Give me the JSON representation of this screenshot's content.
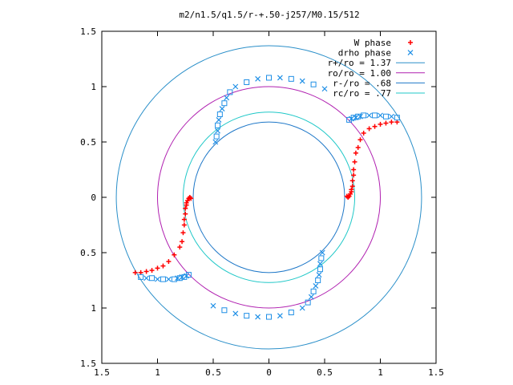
{
  "chart_data": {
    "type": "scatter",
    "title": "m2/n1.5/q1.5/r-+.50-j257/M0.15/512",
    "xlim": [
      -1.5,
      1.5
    ],
    "ylim": [
      -1.5,
      1.5
    ],
    "xticks": [
      -1.5,
      -1,
      -0.5,
      0,
      0.5,
      1,
      1.5
    ],
    "yticks": [
      -1.5,
      -1,
      -0.5,
      0,
      0.5,
      1,
      1.5
    ],
    "xtick_labels": [
      "1.5",
      "1",
      "0.5",
      "0",
      "0.5",
      "1",
      "1.5"
    ],
    "ytick_labels": [
      "1.5",
      "1",
      "0.5",
      "0",
      "0.5",
      "1",
      "1.5"
    ],
    "legend_position": "top-right",
    "grid": false,
    "circles": [
      {
        "name": "r+/ro = 1.37",
        "radius": 1.37,
        "color": "#2a8fc9"
      },
      {
        "name": "ro/ro = 1.00",
        "radius": 1.0,
        "color": "#b020b0"
      },
      {
        "name": "r-/ro = .68",
        "radius": 0.68,
        "color": "#1f78c8"
      },
      {
        "name": "rc/ro = .77",
        "radius": 0.77,
        "color": "#20c8c8"
      }
    ],
    "series": [
      {
        "name": "W phase",
        "marker": "plus",
        "color": "#ff0000",
        "x": [
          1.15,
          1.1,
          1.05,
          1.0,
          0.95,
          0.9,
          0.85,
          0.82,
          0.8,
          0.78,
          0.77,
          0.76,
          0.76,
          0.75,
          0.75,
          0.74,
          0.74,
          0.73,
          0.72,
          0.71,
          0.7,
          -1.2,
          -1.15,
          -1.1,
          -1.05,
          -1.0,
          -0.95,
          -0.9,
          -0.85,
          -0.8,
          -0.78,
          -0.77,
          -0.76,
          -0.76,
          -0.75,
          -0.75,
          -0.74,
          -0.74,
          -0.73,
          -0.72,
          -0.71,
          -0.7
        ],
        "y": [
          0.68,
          0.68,
          0.67,
          0.66,
          0.64,
          0.62,
          0.58,
          0.52,
          0.45,
          0.4,
          0.32,
          0.25,
          0.2,
          0.15,
          0.1,
          0.07,
          0.05,
          0.03,
          0.01,
          0.0,
          0.01,
          -0.68,
          -0.68,
          -0.67,
          -0.66,
          -0.64,
          -0.62,
          -0.58,
          -0.52,
          -0.45,
          -0.4,
          -0.32,
          -0.25,
          -0.2,
          -0.15,
          -0.1,
          -0.07,
          -0.05,
          -0.03,
          -0.01,
          0.0,
          -0.01
        ]
      },
      {
        "name": "drho phase",
        "marker": "cross-square",
        "color": "#1f8fe6",
        "x": [
          1.15,
          1.1,
          1.05,
          1.0,
          0.95,
          0.9,
          0.85,
          0.82,
          0.8,
          0.78,
          0.76,
          0.74,
          0.72,
          0.5,
          0.4,
          0.3,
          0.2,
          0.1,
          0.0,
          -0.1,
          -0.2,
          -0.3,
          -0.35,
          -0.38,
          -0.4,
          -0.42,
          -0.44,
          -0.45,
          -0.46,
          -0.46,
          -0.47,
          -0.48,
          -1.15,
          -1.1,
          -1.05,
          -1.0,
          -0.95,
          -0.9,
          -0.85,
          -0.82,
          -0.8,
          -0.78,
          -0.76,
          -0.74,
          -0.72,
          -0.5,
          -0.4,
          -0.3,
          -0.2,
          -0.1,
          0.0,
          0.1,
          0.2,
          0.3,
          0.35,
          0.38,
          0.4,
          0.42,
          0.44,
          0.45,
          0.46,
          0.46,
          0.47,
          0.48
        ],
        "y": [
          0.72,
          0.73,
          0.73,
          0.74,
          0.74,
          0.74,
          0.74,
          0.73,
          0.73,
          0.72,
          0.72,
          0.71,
          0.7,
          0.98,
          1.02,
          1.05,
          1.07,
          1.08,
          1.08,
          1.07,
          1.04,
          1.0,
          0.95,
          0.9,
          0.85,
          0.8,
          0.75,
          0.7,
          0.65,
          0.6,
          0.55,
          0.5,
          -0.72,
          -0.73,
          -0.73,
          -0.74,
          -0.74,
          -0.74,
          -0.74,
          -0.73,
          -0.73,
          -0.72,
          -0.72,
          -0.71,
          -0.7,
          -0.98,
          -1.02,
          -1.05,
          -1.07,
          -1.08,
          -1.08,
          -1.07,
          -1.04,
          -1.0,
          -0.95,
          -0.9,
          -0.85,
          -0.8,
          -0.75,
          -0.7,
          -0.65,
          -0.6,
          -0.55,
          -0.5
        ]
      }
    ]
  }
}
